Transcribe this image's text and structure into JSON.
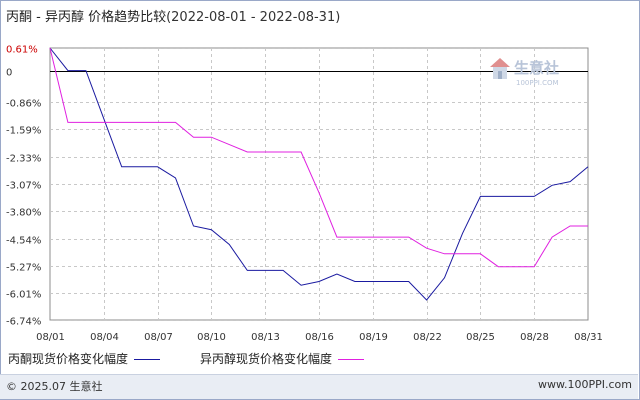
{
  "header": {
    "title": "丙酮 - 异丙醇 价格趋势比较",
    "date_range": "(2022-08-01 - 2022-08-31)"
  },
  "watermark": {
    "brand": "生意社",
    "url": "100PPI.COM"
  },
  "footer": {
    "copyright": "© 2025.07 生意社",
    "site": "www.100PPI.com"
  },
  "colors": {
    "series1": "#1a1aa0",
    "series2": "#e020e0",
    "grid": "#c8c8c8",
    "zero_line": "#000000"
  },
  "chart_data": {
    "type": "line",
    "ylabels": [
      "0.61%",
      "0",
      "-0.86%",
      "-1.59%",
      "-2.33%",
      "-3.07%",
      "-3.80%",
      "-4.54%",
      "-5.27%",
      "-6.01%",
      "-6.74%"
    ],
    "yvalues": [
      0.61,
      0,
      -0.86,
      -1.59,
      -2.33,
      -3.07,
      -3.8,
      -4.54,
      -5.27,
      -6.01,
      -6.74
    ],
    "ylim": [
      -6.74,
      0.61
    ],
    "xlabels": [
      "08/01",
      "08/04",
      "08/07",
      "08/10",
      "08/13",
      "08/16",
      "08/19",
      "08/22",
      "08/25",
      "08/28",
      "08/31"
    ],
    "xlim": [
      1,
      31
    ],
    "grid": true,
    "legend_position": "bottom",
    "series": [
      {
        "name": "丙酮现货价格变化幅度",
        "x": [
          1,
          2,
          3,
          4,
          5,
          6,
          7,
          8,
          9,
          10,
          11,
          12,
          13,
          14,
          15,
          16,
          17,
          18,
          19,
          20,
          21,
          22,
          23,
          24,
          25,
          26,
          27,
          28,
          29,
          30,
          31
        ],
        "values": [
          0.61,
          0,
          0,
          -1.3,
          -2.6,
          -2.6,
          -2.6,
          -2.9,
          -4.2,
          -4.3,
          -4.7,
          -5.4,
          -5.4,
          -5.4,
          -5.8,
          -5.7,
          -5.5,
          -5.7,
          -5.7,
          -5.7,
          -5.7,
          -6.2,
          -5.6,
          -4.4,
          -3.4,
          -3.4,
          -3.4,
          -3.4,
          -3.1,
          -3.0,
          -2.6
        ]
      },
      {
        "name": "异丙醇现货价格变化幅度",
        "x": [
          1,
          2,
          3,
          4,
          5,
          6,
          7,
          8,
          9,
          10,
          11,
          12,
          13,
          14,
          15,
          16,
          17,
          18,
          19,
          20,
          21,
          22,
          23,
          24,
          25,
          26,
          27,
          28,
          29,
          30,
          31
        ],
        "values": [
          0.61,
          -1.4,
          -1.4,
          -1.4,
          -1.4,
          -1.4,
          -1.4,
          -1.4,
          -1.8,
          -1.8,
          -2.0,
          -2.2,
          -2.2,
          -2.2,
          -2.2,
          -3.3,
          -4.5,
          -4.5,
          -4.5,
          -4.5,
          -4.5,
          -4.8,
          -4.95,
          -4.95,
          -4.95,
          -5.3,
          -5.3,
          -5.3,
          -4.5,
          -4.2,
          -4.2
        ]
      }
    ]
  }
}
